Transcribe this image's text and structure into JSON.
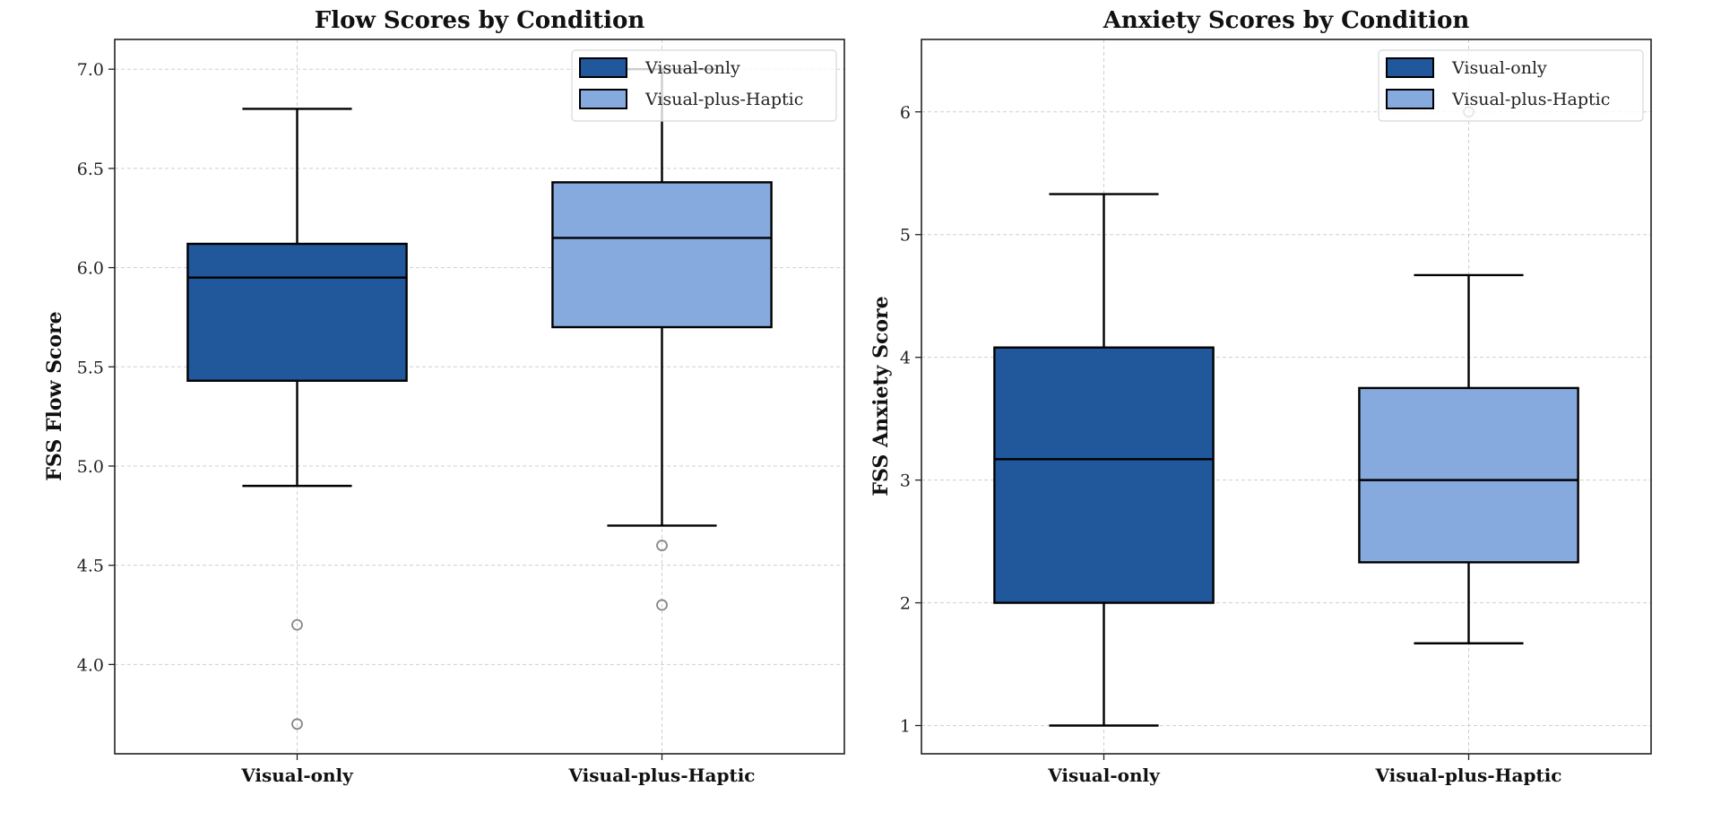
{
  "chart_data": [
    {
      "type": "boxplot",
      "title": "Flow Scores by Condition",
      "xlabel": "",
      "ylabel": "FSS Flow Score",
      "categories": [
        "Visual-only",
        "Visual-plus-Haptic"
      ],
      "ylim": [
        3.55,
        7.15
      ],
      "yticks": [
        4.0,
        4.5,
        5.0,
        5.5,
        6.0,
        6.5,
        7.0
      ],
      "ytick_labels": [
        "4.0",
        "4.5",
        "5.0",
        "5.5",
        "6.0",
        "6.5",
        "7.0"
      ],
      "grid": true,
      "legend": {
        "placement": "upper-right",
        "entries": [
          "Visual-only",
          "Visual-plus-Haptic"
        ]
      },
      "series": [
        {
          "name": "Visual-only",
          "color": "#21579b",
          "whisker_low": 4.9,
          "q1": 5.43,
          "median": 5.95,
          "q3": 6.12,
          "whisker_high": 6.8,
          "outliers": [
            4.2,
            3.7
          ]
        },
        {
          "name": "Visual-plus-Haptic",
          "color": "#87aade",
          "whisker_low": 4.7,
          "q1": 5.7,
          "median": 6.15,
          "q3": 6.43,
          "whisker_high": 7.0,
          "outliers": [
            4.6,
            4.3
          ]
        }
      ]
    },
    {
      "type": "boxplot",
      "title": "Anxiety Scores by Condition",
      "xlabel": "",
      "ylabel": "FSS Anxiety Score",
      "categories": [
        "Visual-only",
        "Visual-plus-Haptic"
      ],
      "ylim": [
        0.77,
        6.59
      ],
      "yticks": [
        1,
        2,
        3,
        4,
        5,
        6
      ],
      "ytick_labels": [
        "1",
        "2",
        "3",
        "4",
        "5",
        "6"
      ],
      "grid": true,
      "legend": {
        "placement": "upper-right",
        "entries": [
          "Visual-only",
          "Visual-plus-Haptic"
        ]
      },
      "series": [
        {
          "name": "Visual-only",
          "color": "#21579b",
          "whisker_low": 1.0,
          "q1": 2.0,
          "median": 3.17,
          "q3": 4.08,
          "whisker_high": 5.33,
          "outliers": []
        },
        {
          "name": "Visual-plus-Haptic",
          "color": "#87aade",
          "whisker_low": 1.67,
          "q1": 2.33,
          "median": 3.0,
          "q3": 3.75,
          "whisker_high": 4.67,
          "outliers": [
            6.0
          ]
        }
      ]
    }
  ]
}
